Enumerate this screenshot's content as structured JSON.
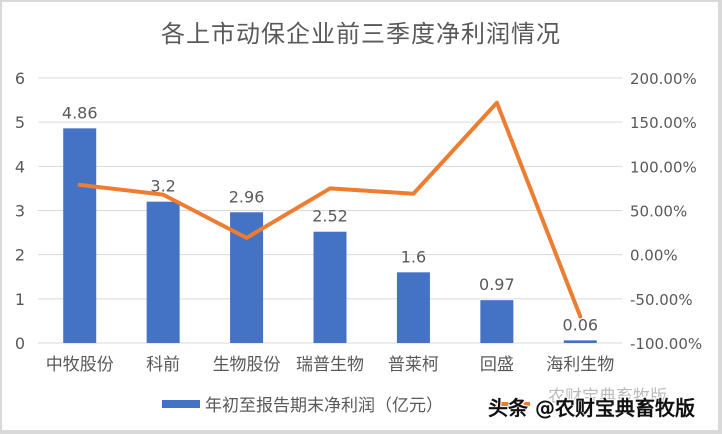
{
  "chart_data": {
    "type": "bar+line",
    "title": "各上市动保企业前三季度净利润情况",
    "categories": [
      "中牧股份",
      "科前",
      "生物股份",
      "瑞普生物",
      "普莱柯",
      "回盛",
      "海利生物"
    ],
    "series": [
      {
        "name": "年初至报告期末净利润（亿元）",
        "type": "bar",
        "axis": "left",
        "color": "#4472c4",
        "values": [
          4.86,
          3.2,
          2.96,
          2.52,
          1.6,
          0.97,
          0.06
        ],
        "labels": [
          "4.86",
          "3.2",
          "2.96",
          "2.52",
          "1.6",
          "0.97",
          "0.06"
        ]
      },
      {
        "name": "",
        "type": "line",
        "axis": "right",
        "color": "#ed7d31",
        "values": [
          79,
          68,
          19,
          75,
          69,
          172,
          -70
        ]
      }
    ],
    "left_axis": {
      "ylim": [
        0,
        6
      ],
      "ticks": [
        "0",
        "1",
        "2",
        "3",
        "4",
        "5",
        "6"
      ]
    },
    "right_axis": {
      "ylim": [
        -100,
        200
      ],
      "ticks": [
        "-100.00%",
        "-50.00%",
        "0.00%",
        "50.00%",
        "100.00%",
        "150.00%",
        "200.00%"
      ]
    },
    "grid": true,
    "legend_position": "bottom"
  },
  "watermark": {
    "main": "头条 @农财宝典畜牧版",
    "faint": "农财宝典畜牧版"
  }
}
